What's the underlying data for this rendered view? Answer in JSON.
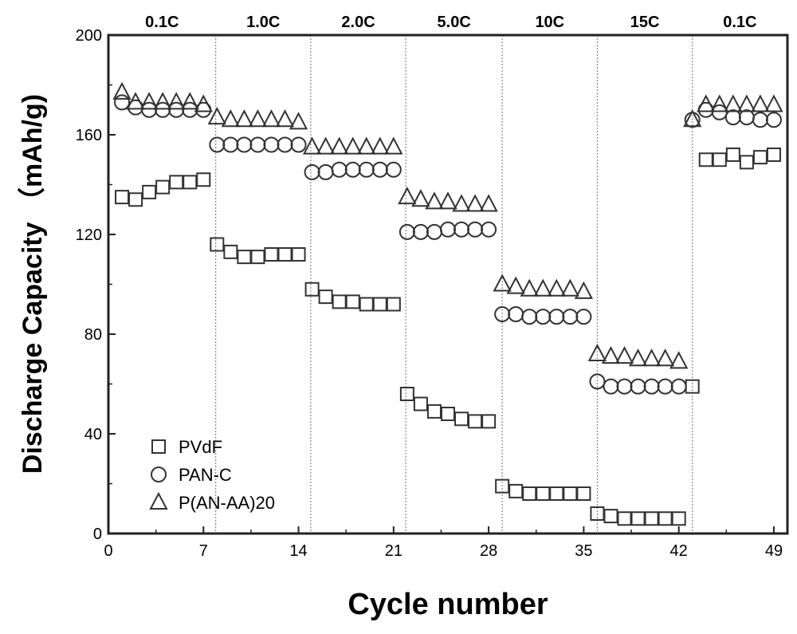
{
  "chart_data": {
    "type": "scatter",
    "title": "",
    "xlabel": "Cycle number",
    "ylabel": "Discharge Capacity （mAh/g)",
    "xlim": [
      0,
      50
    ],
    "ylim": [
      0,
      200
    ],
    "xticks": [
      0,
      7,
      14,
      21,
      28,
      35,
      42,
      49
    ],
    "yticks": [
      0,
      40,
      80,
      120,
      160,
      200
    ],
    "grid": false,
    "legend_position": "bottom-left",
    "rate_labels": [
      "0.1C",
      "1.0C",
      "2.0C",
      "5.0C",
      "10C",
      "15C",
      "0.1C"
    ],
    "rate_boundaries": [
      7.9,
      14.9,
      21.9,
      29,
      36,
      43
    ],
    "series": [
      {
        "name": "PVdF",
        "marker": "square",
        "x": [
          1,
          2,
          3,
          4,
          5,
          6,
          7,
          8,
          9,
          10,
          11,
          12,
          13,
          14,
          15,
          16,
          17,
          18,
          19,
          20,
          21,
          22,
          23,
          24,
          25,
          26,
          27,
          28,
          29,
          30,
          31,
          32,
          33,
          34,
          35,
          36,
          37,
          38,
          39,
          40,
          41,
          42,
          43,
          44,
          45,
          46,
          47,
          48,
          49
        ],
        "values": [
          135,
          134,
          137,
          139,
          141,
          141,
          142,
          116,
          113,
          111,
          111,
          112,
          112,
          112,
          98,
          95,
          93,
          93,
          92,
          92,
          92,
          56,
          52,
          49,
          48,
          46,
          45,
          45,
          19,
          17,
          16,
          16,
          16,
          16,
          16,
          8,
          7,
          6,
          6,
          6,
          6,
          6,
          59,
          150,
          150,
          152,
          149,
          151,
          152
        ]
      },
      {
        "name": "PAN-C",
        "marker": "circle",
        "x": [
          1,
          2,
          3,
          4,
          5,
          6,
          7,
          8,
          9,
          10,
          11,
          12,
          13,
          14,
          15,
          16,
          17,
          18,
          19,
          20,
          21,
          22,
          23,
          24,
          25,
          26,
          27,
          28,
          29,
          30,
          31,
          32,
          33,
          34,
          35,
          36,
          37,
          38,
          39,
          40,
          41,
          42,
          43,
          44,
          45,
          46,
          47,
          48,
          49
        ],
        "values": [
          173,
          171,
          170,
          170,
          170,
          170,
          170,
          156,
          156,
          156,
          156,
          156,
          156,
          156,
          145,
          145,
          146,
          146,
          146,
          146,
          146,
          121,
          121,
          121,
          122,
          122,
          122,
          122,
          88,
          88,
          87,
          87,
          87,
          87,
          87,
          61,
          59,
          59,
          59,
          59,
          59,
          59,
          166,
          170,
          169,
          167,
          167,
          166,
          166
        ]
      },
      {
        "name": "P(AN-AA)20",
        "marker": "triangle",
        "x": [
          1,
          2,
          3,
          4,
          5,
          6,
          7,
          8,
          9,
          10,
          11,
          12,
          13,
          14,
          15,
          16,
          17,
          18,
          19,
          20,
          21,
          22,
          23,
          24,
          25,
          26,
          27,
          28,
          29,
          30,
          31,
          32,
          33,
          34,
          35,
          36,
          37,
          38,
          39,
          40,
          41,
          42,
          43,
          44,
          45,
          46,
          47,
          48,
          49
        ],
        "values": [
          177,
          173,
          173,
          173,
          173,
          173,
          172,
          167,
          166,
          166,
          166,
          166,
          166,
          165,
          155,
          155,
          155,
          155,
          155,
          155,
          155,
          135,
          134,
          133,
          133,
          132,
          132,
          132,
          100,
          99,
          98,
          98,
          98,
          98,
          97,
          72,
          71,
          71,
          70,
          70,
          70,
          69,
          166,
          172,
          172,
          172,
          172,
          172,
          172
        ]
      }
    ]
  }
}
